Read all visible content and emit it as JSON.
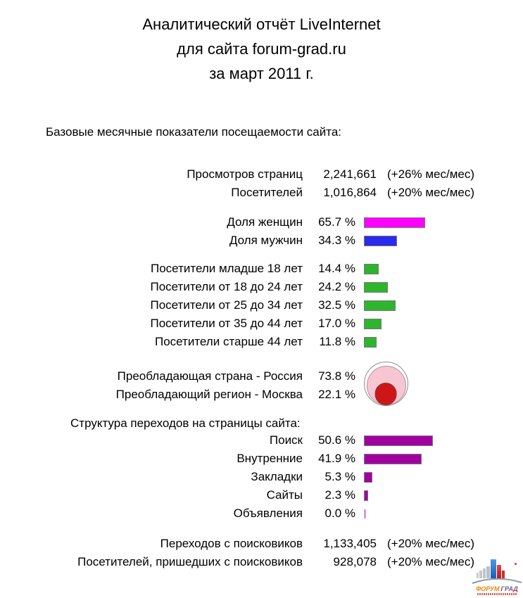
{
  "title": {
    "line1": "Аналитический отчёт LiveInternet",
    "line2": "для сайта forum-grad.ru",
    "line3": "за март 2011 г."
  },
  "sections": {
    "basic": {
      "header": "Базовые месячные показатели посещаемости сайта:",
      "metrics": [
        {
          "label": "Просмотров страниц",
          "value": "2,241,661",
          "change": "(+26% мес/мес)"
        },
        {
          "label": "Посетителей",
          "value": "1,016,864",
          "change": "(+20% мес/мес)"
        }
      ],
      "gender": [
        {
          "label": "Доля женщин",
          "value": "65.7 %",
          "percent": 65.7,
          "color": "#FF00FF"
        },
        {
          "label": "Доля мужчин",
          "value": "34.3 %",
          "percent": 34.3,
          "color": "#2A2AEE"
        }
      ],
      "age_color": "#2DB52D",
      "age": [
        {
          "label": "Посетители младше 18 лет",
          "value": "14.4 %",
          "percent": 14.4
        },
        {
          "label": "Посетители от 18 до 24 лет",
          "value": "24.2 %",
          "percent": 24.2
        },
        {
          "label": "Посетители от 25 до 34 лет",
          "value": "32.5 %",
          "percent": 32.5
        },
        {
          "label": "Посетители от 35 до 44 лет",
          "value": "17.0 %",
          "percent": 17.0
        },
        {
          "label": "Посетители старше 44 лет",
          "value": "11.8 %",
          "percent": 11.8
        }
      ],
      "geo": [
        {
          "label": "Преобладающая страна - Россия",
          "value": "73.8 %",
          "percent": 73.8,
          "color": "#F8C6D2"
        },
        {
          "label": "Преобладающий регион - Москва",
          "value": "22.1 %",
          "percent": 22.1,
          "color": "#CD1717"
        }
      ]
    },
    "transitions": {
      "header": "Структура переходов на страницы сайта:",
      "bar_color": "#A000A0",
      "rows": [
        {
          "label": "Поиск",
          "value": "50.6 %",
          "percent": 50.6
        },
        {
          "label": "Внутренние",
          "value": "41.9 %",
          "percent": 41.9
        },
        {
          "label": "Закладки",
          "value": "5.3 %",
          "percent": 5.3
        },
        {
          "label": "Сайты",
          "value": "2.3 %",
          "percent": 2.3
        },
        {
          "label": "Объявления",
          "value": "0.0 %",
          "percent": 0.0
        }
      ]
    },
    "search_metrics": [
      {
        "label": "Переходов с поисковиков",
        "value": "1,133,405",
        "change": "(+20% мес/мес)"
      },
      {
        "label": "Посетителей, пришедших с поисковиков",
        "value": "928,078",
        "change": "(+20% мес/мес)"
      }
    ]
  },
  "logo": {
    "word1": "ФОРУМ",
    "word2": "ГРАД"
  },
  "chart_data": [
    {
      "type": "table",
      "title": "Базовые месячные показатели посещаемости сайта",
      "rows": [
        [
          "Просмотров страниц",
          "2,241,661",
          "+26% мес/мес"
        ],
        [
          "Посетителей",
          "1,016,864",
          "+20% мес/мес"
        ]
      ]
    },
    {
      "type": "bar",
      "orientation": "horizontal",
      "title": "Доля по полу",
      "categories": [
        "Доля женщин",
        "Доля мужчин"
      ],
      "values": [
        65.7,
        34.3
      ],
      "unit": "%",
      "colors": [
        "#FF00FF",
        "#2A2AEE"
      ],
      "xlim": [
        0,
        100
      ]
    },
    {
      "type": "bar",
      "orientation": "horizontal",
      "title": "Возраст посетителей",
      "categories": [
        "Посетители младше 18 лет",
        "Посетители от 18 до 24 лет",
        "Посетители от 25 до 34 лет",
        "Посетители от 35 до 44 лет",
        "Посетители старше 44 лет"
      ],
      "values": [
        14.4,
        24.2,
        32.5,
        17.0,
        11.8
      ],
      "unit": "%",
      "color": "#2DB52D",
      "xlim": [
        0,
        100
      ]
    },
    {
      "type": "pie",
      "variant": "nested-circles",
      "title": "География посетителей",
      "categories": [
        "Преобладающая страна - Россия",
        "Преобладающий регион - Москва"
      ],
      "values": [
        73.8,
        22.1
      ],
      "unit": "%",
      "colors": [
        "#F8C6D2",
        "#CD1717"
      ]
    },
    {
      "type": "bar",
      "orientation": "horizontal",
      "title": "Структура переходов на страницы сайта",
      "categories": [
        "Поиск",
        "Внутренние",
        "Закладки",
        "Сайты",
        "Объявления"
      ],
      "values": [
        50.6,
        41.9,
        5.3,
        2.3,
        0.0
      ],
      "unit": "%",
      "color": "#A000A0",
      "xlim": [
        0,
        100
      ]
    },
    {
      "type": "table",
      "title": "Переходы с поисковиков",
      "rows": [
        [
          "Переходов с поисковиков",
          "1,133,405",
          "+20% мес/мес"
        ],
        [
          "Посетителей, пришедших с поисковиков",
          "928,078",
          "+20% мес/мес"
        ]
      ]
    }
  ]
}
